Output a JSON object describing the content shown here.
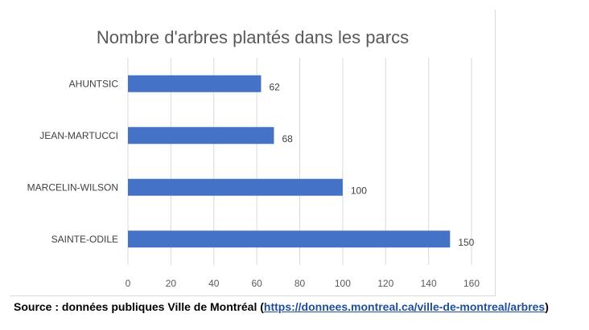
{
  "colors": {
    "bar": "#4472c4",
    "grid": "#d9d9d9",
    "link": "#1f4e9a"
  },
  "chart_data": {
    "type": "bar",
    "orientation": "horizontal",
    "title": "Nombre d'arbres plantés dans les parcs",
    "categories": [
      "AHUNTSIC",
      "JEAN-MARTUCCI",
      "MARCELIN-WILSON",
      "SAINTE-ODILE"
    ],
    "values": [
      62,
      68,
      100,
      150
    ],
    "data_labels": [
      "62",
      "68",
      "100",
      "150"
    ],
    "xlim": [
      0,
      160
    ],
    "xticks": [
      0,
      20,
      40,
      60,
      80,
      100,
      120,
      140,
      160
    ],
    "xtick_labels": [
      "0",
      "20",
      "40",
      "60",
      "80",
      "100",
      "120",
      "140",
      "160"
    ],
    "grid": true,
    "legend": "none"
  },
  "source": {
    "prefix": "Source : données publiques Ville de Montréal (",
    "link_text": "https://donnees.montreal.ca/ville-de-montreal/arbres",
    "suffix": ")"
  }
}
